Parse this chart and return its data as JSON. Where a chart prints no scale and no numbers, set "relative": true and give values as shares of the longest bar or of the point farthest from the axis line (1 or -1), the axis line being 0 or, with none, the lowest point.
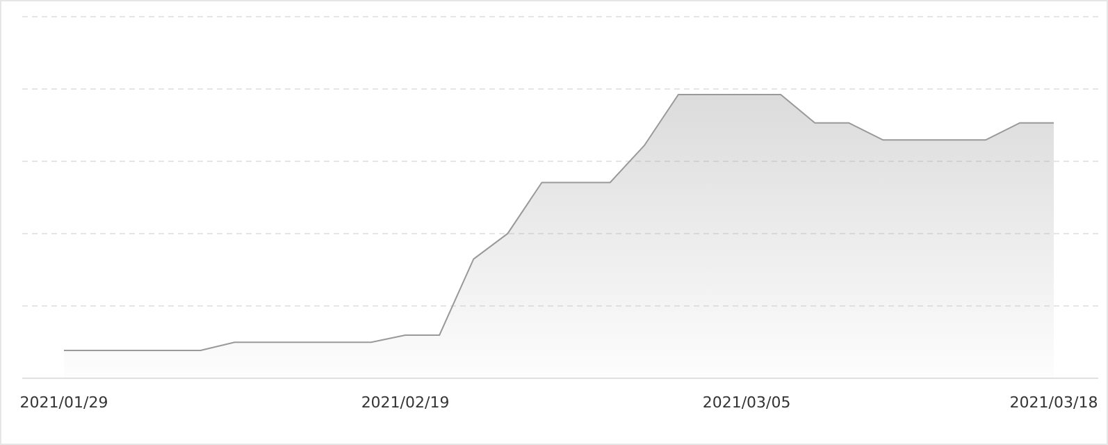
{
  "chart_data": {
    "type": "area",
    "relative": true,
    "grid": "y",
    "color": "#999999",
    "categories": [
      "2021/01/29",
      null,
      null,
      null,
      null,
      null,
      null,
      null,
      null,
      null,
      "2021/02/19",
      null,
      null,
      null,
      null,
      null,
      null,
      null,
      null,
      null,
      "2021/03/05",
      null,
      null,
      null,
      null,
      null,
      null,
      null,
      null,
      "2021/03/18"
    ],
    "values": [
      0.098,
      0.098,
      0.098,
      0.098,
      0.098,
      0.127,
      0.127,
      0.127,
      0.127,
      0.127,
      0.152,
      0.152,
      0.42,
      0.51,
      0.69,
      0.69,
      0.69,
      0.82,
      1,
      1,
      1,
      1,
      0.9,
      0.9,
      0.84,
      0.84,
      0.84,
      0.84,
      0.9,
      0.9
    ]
  }
}
